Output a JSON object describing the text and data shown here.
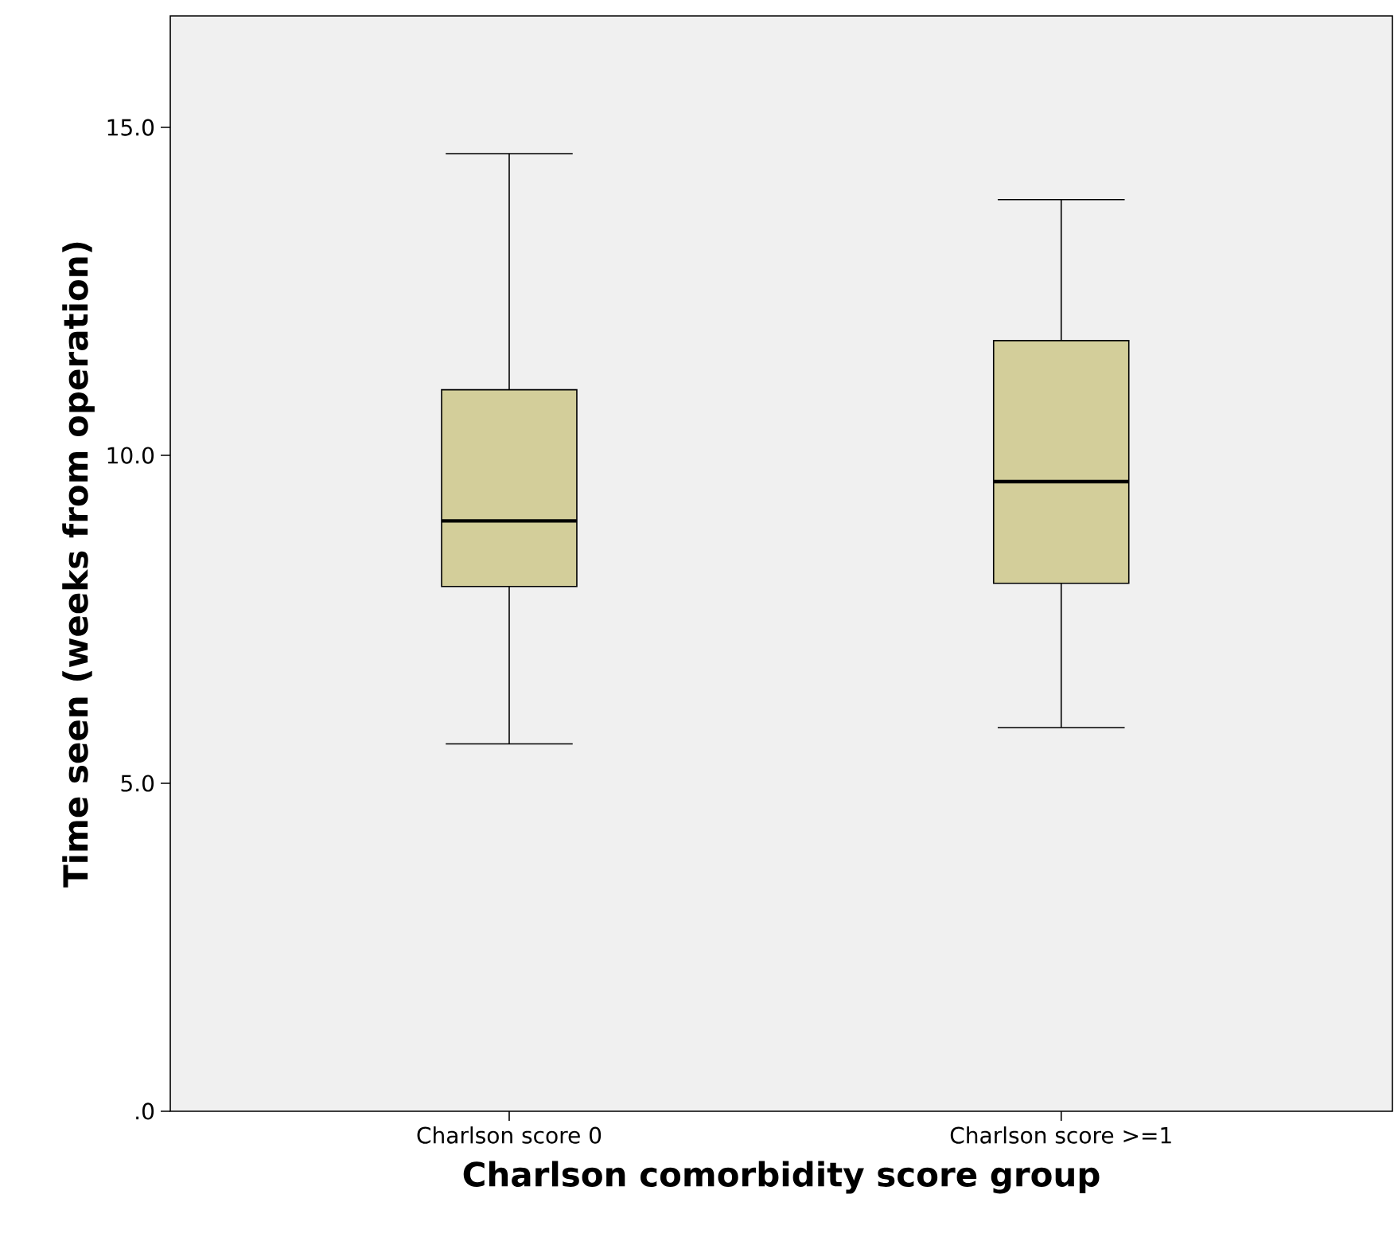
{
  "chart_data": {
    "type": "box",
    "xlabel": "Charlson comorbidity score group",
    "ylabel": "Time seen (weeks from operation)",
    "categories": [
      "Charlson score 0",
      "Charlson score >=1"
    ],
    "boxes": [
      {
        "low": 5.6,
        "q1": 8.0,
        "median": 9.0,
        "q3": 11.0,
        "high": 14.6
      },
      {
        "low": 5.85,
        "q1": 8.05,
        "median": 9.6,
        "q3": 11.75,
        "high": 13.9
      }
    ],
    "color": "#d3ce9a",
    "ylim": [
      0,
      16.7
    ],
    "yticks": [
      {
        "value": 0,
        "label": ".0"
      },
      {
        "value": 5,
        "label": "5.0"
      },
      {
        "value": 10,
        "label": "10.0"
      },
      {
        "value": 15,
        "label": "15.0"
      }
    ],
    "grid": false
  }
}
